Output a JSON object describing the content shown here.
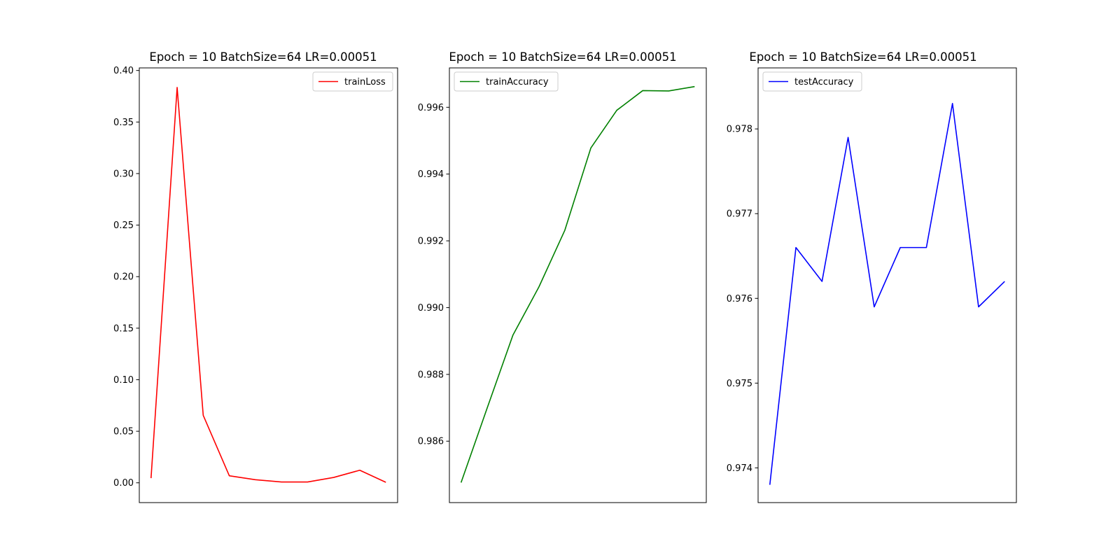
{
  "chart_data": [
    {
      "type": "line",
      "title": "Epoch = 10 BatchSize=64 LR=0.00051",
      "xlabel": "",
      "ylabel": "",
      "x_ticks_visible": false,
      "xlim": [
        -0.45,
        9.45
      ],
      "ylim": [
        -0.0192,
        0.4025
      ],
      "yticks": [
        0.0,
        0.05,
        0.1,
        0.15,
        0.2,
        0.25,
        0.3,
        0.35,
        0.4
      ],
      "ytick_labels": [
        "0.00",
        "0.05",
        "0.10",
        "0.15",
        "0.20",
        "0.25",
        "0.30",
        "0.35",
        "0.40"
      ],
      "legend_position": "upper right",
      "grid": false,
      "series": [
        {
          "name": "trainLoss",
          "color": "#ff0000",
          "x": [
            0,
            1,
            2,
            3,
            4,
            5,
            6,
            7,
            8,
            9
          ],
          "y": [
            0.0045,
            0.3835,
            0.0655,
            0.0068,
            0.003,
            0.0008,
            0.0008,
            0.0052,
            0.0122,
            0.0005
          ]
        }
      ]
    },
    {
      "type": "line",
      "title": "Epoch = 10 BatchSize=64 LR=0.00051",
      "xlabel": "",
      "ylabel": "",
      "x_ticks_visible": false,
      "xlim": [
        -0.45,
        9.45
      ],
      "ylim": [
        0.98416,
        0.99718
      ],
      "yticks": [
        0.986,
        0.988,
        0.99,
        0.992,
        0.994,
        0.996
      ],
      "ytick_labels": [
        "0.986",
        "0.988",
        "0.990",
        "0.992",
        "0.994",
        "0.996"
      ],
      "legend_position": "upper left",
      "grid": false,
      "series": [
        {
          "name": "trainAccuracy",
          "color": "#008000",
          "x": [
            0,
            1,
            2,
            3,
            4,
            5,
            6,
            7,
            8,
            9
          ],
          "y": [
            0.98476,
            0.98698,
            0.98918,
            0.99062,
            0.99232,
            0.99478,
            0.99591,
            0.9965,
            0.99649,
            0.99662
          ]
        }
      ]
    },
    {
      "type": "line",
      "title": "Epoch = 10 BatchSize=64 LR=0.00051",
      "xlabel": "",
      "ylabel": "",
      "x_ticks_visible": false,
      "xlim": [
        -0.45,
        9.45
      ],
      "ylim": [
        0.97359,
        0.97872
      ],
      "yticks": [
        0.974,
        0.975,
        0.976,
        0.977,
        0.978
      ],
      "ytick_labels": [
        "0.974",
        "0.975",
        "0.976",
        "0.977",
        "0.978"
      ],
      "legend_position": "upper left",
      "grid": false,
      "series": [
        {
          "name": "testAccuracy",
          "color": "#0000ff",
          "x": [
            0,
            1,
            2,
            3,
            4,
            5,
            6,
            7,
            8,
            9
          ],
          "y": [
            0.9738,
            0.9766,
            0.9762,
            0.9779,
            0.9759,
            0.9766,
            0.9766,
            0.9783,
            0.9759,
            0.9762
          ]
        }
      ]
    }
  ]
}
